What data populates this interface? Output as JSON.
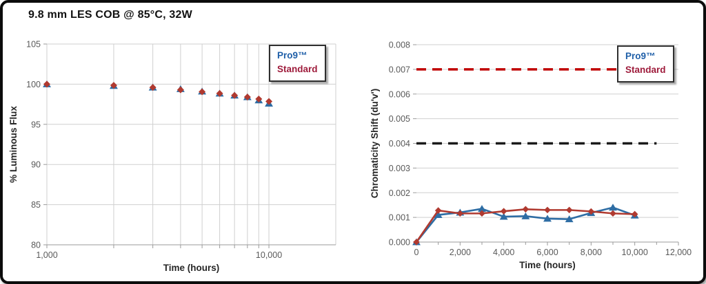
{
  "page": {
    "title": "9.8 mm LES COB @ 85°C, 32W"
  },
  "legend": {
    "entries": [
      {
        "label": "Pro9™",
        "color": "#1F5FA8"
      },
      {
        "label": "Standard",
        "color": "#9E1B3B"
      }
    ]
  },
  "colors": {
    "pro9_series": "#2E6DA4",
    "standard_series": "#B03A30",
    "red_limit_line": "#C00000",
    "black_limit_line": "#1A1A1A",
    "gridline": "#CFCFCF",
    "axis_line": "#9A9A9A",
    "tick_label": "#595959"
  },
  "chart_data": [
    {
      "type": "scatter",
      "title": "Luminous flux maintenance",
      "xlabel": "Time (hours)",
      "ylabel": "% Luminous Flux",
      "x_scale": "log",
      "xlim": [
        1000,
        20000
      ],
      "ylim": [
        80,
        105
      ],
      "grid": true,
      "legend_position": "top-right",
      "x_gridlines": [
        1000,
        2000,
        3000,
        4000,
        5000,
        6000,
        7000,
        8000,
        9000,
        10000
      ],
      "x_ticks": [
        {
          "value": 1000,
          "label": "1,000"
        },
        {
          "value": 10000,
          "label": "10,000"
        }
      ],
      "y_ticks": [
        {
          "value": 80,
          "label": "80"
        },
        {
          "value": 85,
          "label": "85"
        },
        {
          "value": 90,
          "label": "90"
        },
        {
          "value": 95,
          "label": "95"
        },
        {
          "value": 100,
          "label": "100"
        },
        {
          "value": 105,
          "label": "105"
        }
      ],
      "x": [
        1000,
        2000,
        3000,
        4000,
        5000,
        6000,
        7000,
        8000,
        9000,
        10000
      ],
      "series": [
        {
          "name": "Pro9™",
          "marker": "triangle",
          "color": "#2E6DA4",
          "values": [
            100.0,
            99.8,
            99.6,
            99.4,
            99.1,
            98.85,
            98.6,
            98.4,
            98.0,
            97.6
          ]
        },
        {
          "name": "Standard",
          "marker": "diamond",
          "color": "#B03A30",
          "values": [
            100.0,
            99.85,
            99.6,
            99.3,
            99.05,
            98.85,
            98.6,
            98.4,
            98.15,
            97.85
          ]
        }
      ]
    },
    {
      "type": "line",
      "title": "Chromaticity shift",
      "xlabel": "Time (hours)",
      "ylabel": "Chromaticity Shift (du'v')",
      "x_scale": "linear",
      "xlim": [
        0,
        12000
      ],
      "ylim": [
        0,
        0.008
      ],
      "grid": true,
      "legend_position": "top-right",
      "x_ticks": [
        {
          "value": 0,
          "label": "0"
        },
        {
          "value": 2000,
          "label": "2,000"
        },
        {
          "value": 4000,
          "label": "4,000"
        },
        {
          "value": 6000,
          "label": "6,000"
        },
        {
          "value": 8000,
          "label": "8,000"
        },
        {
          "value": 10000,
          "label": "10,000"
        },
        {
          "value": 12000,
          "label": "12,000"
        }
      ],
      "x_minor_tick_step": 1000,
      "y_ticks": [
        {
          "value": 0.0,
          "label": "0.000"
        },
        {
          "value": 0.001,
          "label": "0.001"
        },
        {
          "value": 0.002,
          "label": "0.002"
        },
        {
          "value": 0.003,
          "label": "0.003"
        },
        {
          "value": 0.004,
          "label": "0.004"
        },
        {
          "value": 0.005,
          "label": "0.005"
        },
        {
          "value": 0.006,
          "label": "0.006"
        },
        {
          "value": 0.007,
          "label": "0.007"
        },
        {
          "value": 0.008,
          "label": "0.008"
        }
      ],
      "limit_lines": [
        {
          "value": 0.007,
          "color": "#C00000",
          "style": "dashed",
          "span": [
            0,
            11000
          ]
        },
        {
          "value": 0.004,
          "color": "#1A1A1A",
          "style": "dashed",
          "span": [
            0,
            11000
          ]
        }
      ],
      "x": [
        0,
        1000,
        2000,
        3000,
        4000,
        5000,
        6000,
        7000,
        8000,
        9000,
        10000
      ],
      "series": [
        {
          "name": "Pro9™",
          "marker": "triangle",
          "color": "#2E6DA4",
          "values": [
            0.0,
            0.0011,
            0.0012,
            0.00135,
            0.00103,
            0.00105,
            0.00095,
            0.00093,
            0.00118,
            0.0014,
            0.00108
          ]
        },
        {
          "name": "Standard",
          "marker": "diamond",
          "color": "#B03A30",
          "values": [
            0.0,
            0.00128,
            0.00116,
            0.00116,
            0.00125,
            0.00133,
            0.0013,
            0.0013,
            0.00124,
            0.00116,
            0.00113
          ]
        }
      ]
    }
  ]
}
